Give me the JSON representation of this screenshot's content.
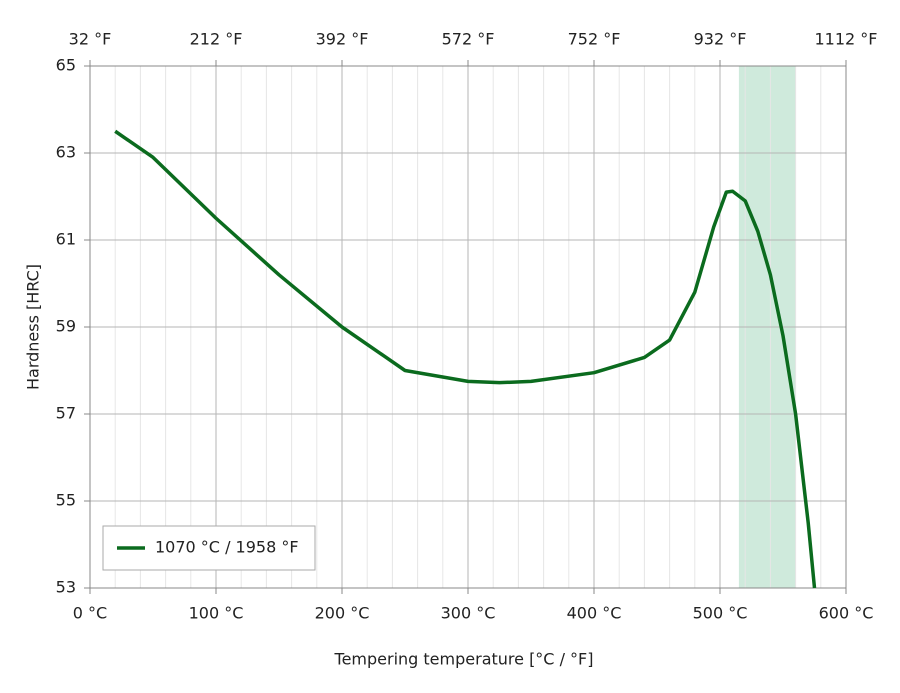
{
  "chart_data": {
    "type": "line",
    "xlabel": "Tempering temperature [°C / °F]",
    "ylabel": "Hardness [HRC]",
    "x": [
      20,
      50,
      100,
      150,
      200,
      250,
      300,
      325,
      350,
      400,
      440,
      460,
      480,
      495,
      505,
      510,
      520,
      530,
      540,
      550,
      560,
      570,
      575
    ],
    "series": [
      {
        "name": "1070 °C / 1958 °F",
        "color": "#0b6b1e",
        "values": [
          63.5,
          62.9,
          61.5,
          60.2,
          59.0,
          58.0,
          57.75,
          57.72,
          57.75,
          57.95,
          58.3,
          58.7,
          59.8,
          61.3,
          62.1,
          62.12,
          61.9,
          61.2,
          60.2,
          58.8,
          57.0,
          54.5,
          53.0
        ]
      }
    ],
    "xlim": [
      0,
      600
    ],
    "xticks": [
      {
        "value": 0,
        "label": "0 °C"
      },
      {
        "value": 100,
        "label": "100 °C"
      },
      {
        "value": 200,
        "label": "200 °C"
      },
      {
        "value": 300,
        "label": "300 °C"
      },
      {
        "value": 400,
        "label": "400 °C"
      },
      {
        "value": 500,
        "label": "500 °C"
      },
      {
        "value": 600,
        "label": "600 °C"
      }
    ],
    "xminorticks": [
      20,
      40,
      60,
      80,
      120,
      140,
      160,
      180,
      220,
      240,
      260,
      280,
      320,
      340,
      360,
      380,
      420,
      440,
      460,
      480,
      520,
      540,
      560,
      580
    ],
    "x2lim": [
      32,
      1112
    ],
    "x2ticks": [
      {
        "value": 32,
        "label": "32 °F"
      },
      {
        "value": 212,
        "label": "212 °F"
      },
      {
        "value": 392,
        "label": "392 °F"
      },
      {
        "value": 572,
        "label": "572 °F"
      },
      {
        "value": 752,
        "label": "752 °F"
      },
      {
        "value": 932,
        "label": "932 °F"
      },
      {
        "value": 1112,
        "label": "1112 °F"
      }
    ],
    "ylim": [
      53,
      65
    ],
    "yticks": [
      53,
      55,
      57,
      59,
      61,
      63,
      65
    ],
    "highlight_range": [
      515,
      560
    ],
    "highlight_color": "#cfeadc",
    "grid": true,
    "legend": "lower left"
  }
}
